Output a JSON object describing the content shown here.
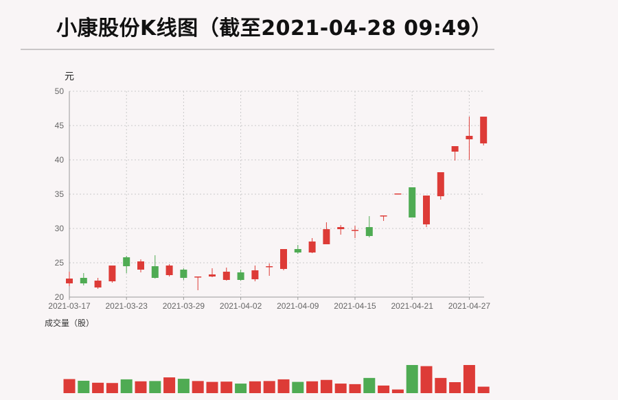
{
  "title": "小康股份K线图（截至2021-04-28 09:49）",
  "colors": {
    "up": "#dd3b37",
    "down": "#4fab53",
    "grid": "#c9c9c9",
    "axis": "#999999"
  },
  "chart_data": {
    "type": "candlestick",
    "ylabel": "元",
    "volume_label": "成交量（股）",
    "ylim": [
      20,
      50
    ],
    "yticks": [
      20,
      25,
      30,
      35,
      40,
      45,
      50
    ],
    "xtick_labels": [
      "2021-03-17",
      "2021-03-23",
      "2021-03-29",
      "2021-04-02",
      "2021-04-09",
      "2021-04-15",
      "2021-04-21",
      "2021-04-27"
    ],
    "xtick_positions": [
      0,
      4,
      8,
      12,
      16,
      20,
      24,
      28
    ],
    "grid": true,
    "candles": [
      {
        "open": 22.0,
        "close": 22.7,
        "high": 23.7,
        "low": 21.6
      },
      {
        "open": 22.8,
        "close": 22.0,
        "high": 23.5,
        "low": 21.7
      },
      {
        "open": 21.4,
        "close": 22.4,
        "high": 22.8,
        "low": 21.2
      },
      {
        "open": 22.3,
        "close": 24.6,
        "high": 24.6,
        "low": 22.1
      },
      {
        "open": 25.8,
        "close": 24.5,
        "high": 26.0,
        "low": 23.5
      },
      {
        "open": 24.0,
        "close": 25.2,
        "high": 25.5,
        "low": 23.6
      },
      {
        "open": 24.5,
        "close": 22.8,
        "high": 26.1,
        "low": 22.7
      },
      {
        "open": 23.2,
        "close": 24.6,
        "high": 24.8,
        "low": 23.0
      },
      {
        "open": 24.0,
        "close": 22.8,
        "high": 24.2,
        "low": 22.5
      },
      {
        "open": 23.0,
        "close": 23.0,
        "high": 23.0,
        "low": 21.0
      },
      {
        "open": 23.0,
        "close": 23.3,
        "high": 24.2,
        "low": 22.9
      },
      {
        "open": 22.5,
        "close": 23.7,
        "high": 24.3,
        "low": 22.4
      },
      {
        "open": 23.6,
        "close": 22.5,
        "high": 24.0,
        "low": 22.4
      },
      {
        "open": 22.6,
        "close": 23.9,
        "high": 24.6,
        "low": 22.3
      },
      {
        "open": 24.5,
        "close": 24.5,
        "high": 24.9,
        "low": 23.1
      },
      {
        "open": 24.1,
        "close": 27.0,
        "high": 27.0,
        "low": 23.9
      },
      {
        "open": 27.0,
        "close": 26.5,
        "high": 27.6,
        "low": 26.3
      },
      {
        "open": 26.5,
        "close": 28.1,
        "high": 28.6,
        "low": 26.4
      },
      {
        "open": 27.7,
        "close": 29.9,
        "high": 30.9,
        "low": 27.7
      },
      {
        "open": 29.9,
        "close": 30.2,
        "high": 30.5,
        "low": 29.1
      },
      {
        "open": 29.8,
        "close": 29.8,
        "high": 30.4,
        "low": 28.6
      },
      {
        "open": 30.2,
        "close": 28.9,
        "high": 31.8,
        "low": 28.7
      },
      {
        "open": 31.9,
        "close": 31.9,
        "high": 31.9,
        "low": 31.1
      },
      {
        "open": 35.1,
        "close": 35.1,
        "high": 35.1,
        "low": 35.0
      },
      {
        "open": 36.0,
        "close": 31.6,
        "high": 36.0,
        "low": 31.6
      },
      {
        "open": 30.6,
        "close": 34.8,
        "high": 34.8,
        "low": 30.2
      },
      {
        "open": 34.7,
        "close": 38.2,
        "high": 38.2,
        "low": 34.2
      },
      {
        "open": 41.2,
        "close": 42.0,
        "high": 42.0,
        "low": 39.9
      },
      {
        "open": 43.0,
        "close": 43.5,
        "high": 46.3,
        "low": 40.0
      },
      {
        "open": 42.4,
        "close": 46.3,
        "high": 46.3,
        "low": 42.1
      }
    ],
    "volume": [
      {
        "value": 0.5,
        "dir": "up"
      },
      {
        "value": 0.44,
        "dir": "down"
      },
      {
        "value": 0.37,
        "dir": "up"
      },
      {
        "value": 0.36,
        "dir": "up"
      },
      {
        "value": 0.49,
        "dir": "down"
      },
      {
        "value": 0.42,
        "dir": "up"
      },
      {
        "value": 0.43,
        "dir": "down"
      },
      {
        "value": 0.56,
        "dir": "up"
      },
      {
        "value": 0.51,
        "dir": "down"
      },
      {
        "value": 0.43,
        "dir": "up"
      },
      {
        "value": 0.4,
        "dir": "up"
      },
      {
        "value": 0.41,
        "dir": "up"
      },
      {
        "value": 0.34,
        "dir": "down"
      },
      {
        "value": 0.42,
        "dir": "up"
      },
      {
        "value": 0.43,
        "dir": "up"
      },
      {
        "value": 0.49,
        "dir": "up"
      },
      {
        "value": 0.4,
        "dir": "down"
      },
      {
        "value": 0.42,
        "dir": "up"
      },
      {
        "value": 0.47,
        "dir": "up"
      },
      {
        "value": 0.34,
        "dir": "up"
      },
      {
        "value": 0.32,
        "dir": "up"
      },
      {
        "value": 0.54,
        "dir": "down"
      },
      {
        "value": 0.27,
        "dir": "up"
      },
      {
        "value": 0.13,
        "dir": "up"
      },
      {
        "value": 1.0,
        "dir": "down"
      },
      {
        "value": 0.96,
        "dir": "up"
      },
      {
        "value": 0.54,
        "dir": "up"
      },
      {
        "value": 0.39,
        "dir": "up"
      },
      {
        "value": 1.0,
        "dir": "up"
      },
      {
        "value": 0.23,
        "dir": "up"
      }
    ]
  }
}
